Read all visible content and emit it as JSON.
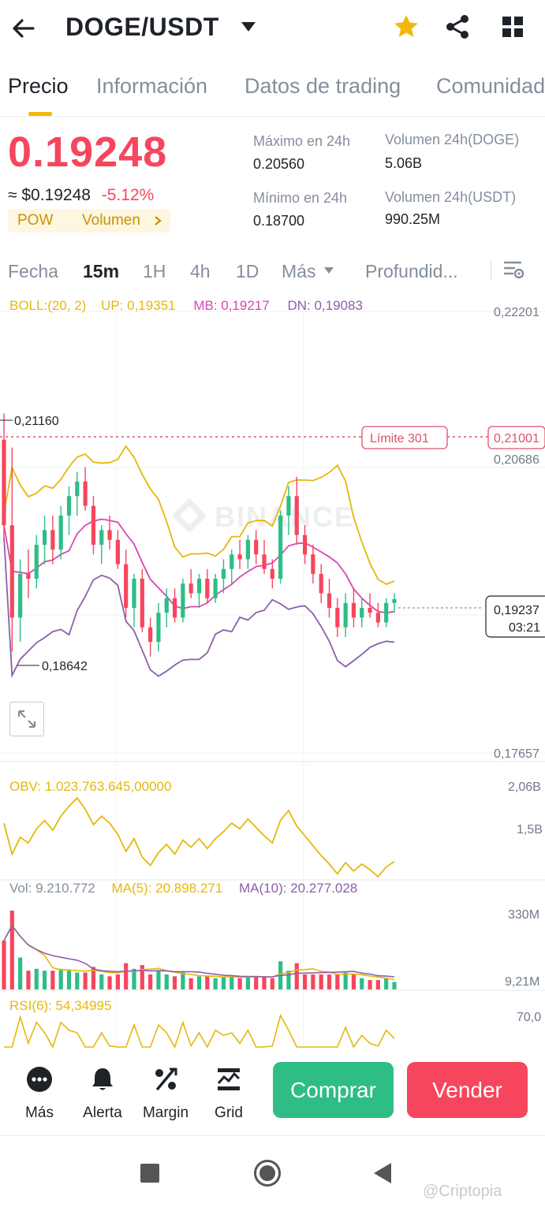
{
  "header": {
    "pair": "DOGE/USDT",
    "icons": [
      "back-arrow-icon",
      "dropdown-caret-icon",
      "star-icon",
      "share-icon",
      "grid-menu-icon"
    ],
    "star_color": "#f0b90b"
  },
  "tabs": [
    "Precio",
    "Información",
    "Datos de trading",
    "Comunidad"
  ],
  "active_tab": "Precio",
  "price": {
    "last": "0.19248",
    "fiat": "≈ $0.19248",
    "change": "-5.12%",
    "badge_pow": "POW",
    "badge_volume": "Volumen",
    "high_label": "Máximo en 24h",
    "high_value": "0.20560",
    "low_label": "Mínimo en 24h",
    "low_value": "0.18700",
    "vol_doge_label": "Volumen 24h(DOGE)",
    "vol_doge_value": "5.06B",
    "vol_usdt_label": "Volumen 24h(USDT)",
    "vol_usdt_value": "990.25M",
    "down_color": "#f6465d",
    "up_color": "#2ebd85"
  },
  "intervals": [
    "Fecha",
    "15m",
    "1H",
    "4h",
    "1D",
    "Más",
    "Profundid..."
  ],
  "active_interval": "15m",
  "indicators": {
    "boll": "BOLL:(20, 2)",
    "up": "UP: 0,19351",
    "mb": "MB: 0,19217",
    "dn": "DN: 0,19083",
    "obv": "OBV: 1.023.763.645,00000",
    "vol": "Vol: 9.210.772",
    "ma5": "MA(5): 20.898.271",
    "ma10": "MA(10): 20.277.028",
    "rsi": "RSI(6): 54,34995"
  },
  "chart_data": {
    "type": "candlestick",
    "price_axis": [
      "0,22201",
      "0,20686",
      "0,17657"
    ],
    "high_marker": "0,21160",
    "low_marker": "0,18642",
    "limit_order_label": "Límite  301",
    "limit_order_price": "0,21001",
    "current_price": "0,19237",
    "countdown": "03:21",
    "obv_axis": [
      "2,06B",
      "1,5B"
    ],
    "vol_axis": [
      "330M",
      "9,21M"
    ],
    "rsi_axis": [
      "70,0"
    ],
    "watermark": "BINANCE",
    "candles": [
      [
        0.2088,
        0.2115,
        0.1985,
        0.2
      ],
      [
        0.2,
        0.208,
        0.187,
        0.1905
      ],
      [
        0.1905,
        0.1965,
        0.188,
        0.195
      ],
      [
        0.195,
        0.1975,
        0.1925,
        0.1945
      ],
      [
        0.1945,
        0.199,
        0.1935,
        0.198
      ],
      [
        0.198,
        0.201,
        0.196,
        0.1995
      ],
      [
        0.1995,
        0.201,
        0.196,
        0.1975
      ],
      [
        0.1975,
        0.202,
        0.1965,
        0.201
      ],
      [
        0.201,
        0.204,
        0.199,
        0.203
      ],
      [
        0.203,
        0.2055,
        0.201,
        0.2045
      ],
      [
        0.2045,
        0.206,
        0.2015,
        0.202
      ],
      [
        0.202,
        0.203,
        0.197,
        0.198
      ],
      [
        0.198,
        0.2,
        0.196,
        0.1995
      ],
      [
        0.1995,
        0.201,
        0.1975,
        0.1985
      ],
      [
        0.1985,
        0.1995,
        0.1955,
        0.196
      ],
      [
        0.196,
        0.1975,
        0.1905,
        0.1915
      ],
      [
        0.1915,
        0.195,
        0.1895,
        0.1945
      ],
      [
        0.1945,
        0.1955,
        0.189,
        0.1895
      ],
      [
        0.1895,
        0.1905,
        0.1865,
        0.188
      ],
      [
        0.188,
        0.192,
        0.187,
        0.191
      ],
      [
        0.191,
        0.1935,
        0.1895,
        0.1925
      ],
      [
        0.1925,
        0.1935,
        0.19,
        0.1905
      ],
      [
        0.1905,
        0.1945,
        0.19,
        0.194
      ],
      [
        0.194,
        0.1955,
        0.1925,
        0.193
      ],
      [
        0.193,
        0.195,
        0.1915,
        0.1945
      ],
      [
        0.1945,
        0.1955,
        0.192,
        0.1925
      ],
      [
        0.1925,
        0.195,
        0.192,
        0.1945
      ],
      [
        0.1945,
        0.1965,
        0.193,
        0.1955
      ],
      [
        0.1955,
        0.1975,
        0.194,
        0.197
      ],
      [
        0.197,
        0.1985,
        0.1955,
        0.1965
      ],
      [
        0.1965,
        0.199,
        0.1955,
        0.1985
      ],
      [
        0.1985,
        0.1995,
        0.196,
        0.197
      ],
      [
        0.197,
        0.1985,
        0.195,
        0.1955
      ],
      [
        0.1955,
        0.1965,
        0.1935,
        0.1945
      ],
      [
        0.1945,
        0.2015,
        0.194,
        0.201
      ],
      [
        0.201,
        0.204,
        0.199,
        0.203
      ],
      [
        0.203,
        0.205,
        0.198,
        0.199
      ],
      [
        0.199,
        0.2,
        0.196,
        0.197
      ],
      [
        0.197,
        0.198,
        0.194,
        0.195
      ],
      [
        0.195,
        0.196,
        0.192,
        0.193
      ],
      [
        0.193,
        0.1945,
        0.1905,
        0.1915
      ],
      [
        0.1915,
        0.1925,
        0.1885,
        0.1895
      ],
      [
        0.1895,
        0.193,
        0.1885,
        0.192
      ],
      [
        0.192,
        0.1935,
        0.1895,
        0.1905
      ],
      [
        0.1905,
        0.1925,
        0.1895,
        0.1915
      ],
      [
        0.1915,
        0.193,
        0.1905,
        0.191
      ],
      [
        0.191,
        0.192,
        0.1895,
        0.19
      ],
      [
        0.19,
        0.1925,
        0.1895,
        0.192
      ],
      [
        0.192,
        0.193,
        0.191,
        0.1924
      ]
    ]
  },
  "actions": [
    {
      "label": "Más",
      "icon": "more-dots-icon"
    },
    {
      "label": "Alerta",
      "icon": "bell-icon"
    },
    {
      "label": "Margin",
      "icon": "margin-percent-icon"
    },
    {
      "label": "Grid",
      "icon": "grid-bot-icon"
    }
  ],
  "buy_label": "Comprar",
  "sell_label": "Vender",
  "system_nav_icons": [
    "recents-square-icon",
    "home-circle-icon",
    "back-triangle-icon"
  ],
  "watermark_text": "@Criptopia"
}
